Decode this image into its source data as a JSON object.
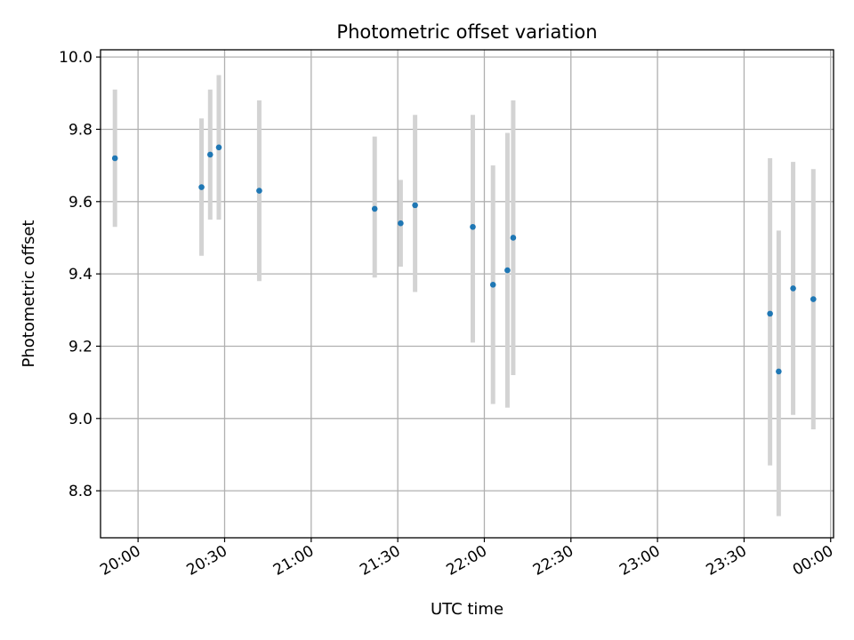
{
  "chart_data": {
    "type": "scatter",
    "title": "Photometric offset variation",
    "xlabel": "UTC time",
    "ylabel": "Photometric offset",
    "x_axis": "time",
    "xlim": [
      "19:47",
      "00:01"
    ],
    "ylim": [
      8.67,
      10.02
    ],
    "xticks": [
      "20:00",
      "20:30",
      "21:00",
      "21:30",
      "22:00",
      "22:30",
      "23:00",
      "23:30",
      "00:00"
    ],
    "yticks": [
      "8.8",
      "9.0",
      "9.2",
      "9.4",
      "9.6",
      "9.8",
      "10.0"
    ],
    "ytick_values": [
      8.8,
      9.0,
      9.2,
      9.4,
      9.6,
      9.8,
      10.0
    ],
    "grid": true,
    "errorbar_color": "#d3d3d3",
    "point_color": "#1f77b4",
    "points": [
      {
        "x": "19:52",
        "y": 9.72,
        "err_low": 9.53,
        "err_high": 9.91
      },
      {
        "x": "20:22",
        "y": 9.64,
        "err_low": 9.45,
        "err_high": 9.83
      },
      {
        "x": "20:25",
        "y": 9.73,
        "err_low": 9.55,
        "err_high": 9.91
      },
      {
        "x": "20:28",
        "y": 9.75,
        "err_low": 9.55,
        "err_high": 9.95
      },
      {
        "x": "20:42",
        "y": 9.63,
        "err_low": 9.38,
        "err_high": 9.88
      },
      {
        "x": "21:22",
        "y": 9.58,
        "err_low": 9.39,
        "err_high": 9.78
      },
      {
        "x": "21:31",
        "y": 9.54,
        "err_low": 9.42,
        "err_high": 9.66
      },
      {
        "x": "21:36",
        "y": 9.59,
        "err_low": 9.35,
        "err_high": 9.84
      },
      {
        "x": "21:56",
        "y": 9.53,
        "err_low": 9.21,
        "err_high": 9.84
      },
      {
        "x": "22:03",
        "y": 9.37,
        "err_low": 9.04,
        "err_high": 9.7
      },
      {
        "x": "22:08",
        "y": 9.41,
        "err_low": 9.03,
        "err_high": 9.79
      },
      {
        "x": "22:10",
        "y": 9.5,
        "err_low": 9.12,
        "err_high": 9.88
      },
      {
        "x": "23:39",
        "y": 9.29,
        "err_low": 8.87,
        "err_high": 9.72
      },
      {
        "x": "23:42",
        "y": 9.13,
        "err_low": 8.73,
        "err_high": 9.52
      },
      {
        "x": "23:47",
        "y": 9.36,
        "err_low": 9.01,
        "err_high": 9.71
      },
      {
        "x": "23:54",
        "y": 9.33,
        "err_low": 8.97,
        "err_high": 9.69
      }
    ]
  }
}
